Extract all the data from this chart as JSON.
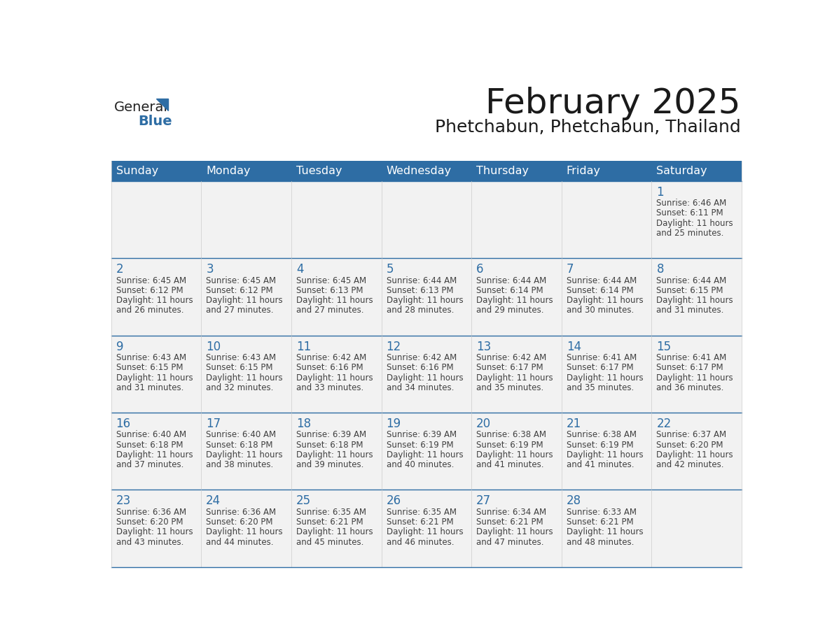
{
  "title": "February 2025",
  "subtitle": "Phetchabun, Phetchabun, Thailand",
  "header_bg": "#2E6DA4",
  "header_text_color": "#FFFFFF",
  "cell_bg_light": "#F2F2F2",
  "day_number_color": "#2E6DA4",
  "info_text_color": "#404040",
  "border_color": "#2E6DA4",
  "days_of_week": [
    "Sunday",
    "Monday",
    "Tuesday",
    "Wednesday",
    "Thursday",
    "Friday",
    "Saturday"
  ],
  "weeks": [
    [
      {
        "day": null,
        "sunrise": null,
        "sunset": null,
        "daylight": null
      },
      {
        "day": null,
        "sunrise": null,
        "sunset": null,
        "daylight": null
      },
      {
        "day": null,
        "sunrise": null,
        "sunset": null,
        "daylight": null
      },
      {
        "day": null,
        "sunrise": null,
        "sunset": null,
        "daylight": null
      },
      {
        "day": null,
        "sunrise": null,
        "sunset": null,
        "daylight": null
      },
      {
        "day": null,
        "sunrise": null,
        "sunset": null,
        "daylight": null
      },
      {
        "day": 1,
        "sunrise": "6:46 AM",
        "sunset": "6:11 PM",
        "daylight": "11 hours and 25 minutes."
      }
    ],
    [
      {
        "day": 2,
        "sunrise": "6:45 AM",
        "sunset": "6:12 PM",
        "daylight": "11 hours and 26 minutes."
      },
      {
        "day": 3,
        "sunrise": "6:45 AM",
        "sunset": "6:12 PM",
        "daylight": "11 hours and 27 minutes."
      },
      {
        "day": 4,
        "sunrise": "6:45 AM",
        "sunset": "6:13 PM",
        "daylight": "11 hours and 27 minutes."
      },
      {
        "day": 5,
        "sunrise": "6:44 AM",
        "sunset": "6:13 PM",
        "daylight": "11 hours and 28 minutes."
      },
      {
        "day": 6,
        "sunrise": "6:44 AM",
        "sunset": "6:14 PM",
        "daylight": "11 hours and 29 minutes."
      },
      {
        "day": 7,
        "sunrise": "6:44 AM",
        "sunset": "6:14 PM",
        "daylight": "11 hours and 30 minutes."
      },
      {
        "day": 8,
        "sunrise": "6:44 AM",
        "sunset": "6:15 PM",
        "daylight": "11 hours and 31 minutes."
      }
    ],
    [
      {
        "day": 9,
        "sunrise": "6:43 AM",
        "sunset": "6:15 PM",
        "daylight": "11 hours and 31 minutes."
      },
      {
        "day": 10,
        "sunrise": "6:43 AM",
        "sunset": "6:15 PM",
        "daylight": "11 hours and 32 minutes."
      },
      {
        "day": 11,
        "sunrise": "6:42 AM",
        "sunset": "6:16 PM",
        "daylight": "11 hours and 33 minutes."
      },
      {
        "day": 12,
        "sunrise": "6:42 AM",
        "sunset": "6:16 PM",
        "daylight": "11 hours and 34 minutes."
      },
      {
        "day": 13,
        "sunrise": "6:42 AM",
        "sunset": "6:17 PM",
        "daylight": "11 hours and 35 minutes."
      },
      {
        "day": 14,
        "sunrise": "6:41 AM",
        "sunset": "6:17 PM",
        "daylight": "11 hours and 35 minutes."
      },
      {
        "day": 15,
        "sunrise": "6:41 AM",
        "sunset": "6:17 PM",
        "daylight": "11 hours and 36 minutes."
      }
    ],
    [
      {
        "day": 16,
        "sunrise": "6:40 AM",
        "sunset": "6:18 PM",
        "daylight": "11 hours and 37 minutes."
      },
      {
        "day": 17,
        "sunrise": "6:40 AM",
        "sunset": "6:18 PM",
        "daylight": "11 hours and 38 minutes."
      },
      {
        "day": 18,
        "sunrise": "6:39 AM",
        "sunset": "6:18 PM",
        "daylight": "11 hours and 39 minutes."
      },
      {
        "day": 19,
        "sunrise": "6:39 AM",
        "sunset": "6:19 PM",
        "daylight": "11 hours and 40 minutes."
      },
      {
        "day": 20,
        "sunrise": "6:38 AM",
        "sunset": "6:19 PM",
        "daylight": "11 hours and 41 minutes."
      },
      {
        "day": 21,
        "sunrise": "6:38 AM",
        "sunset": "6:19 PM",
        "daylight": "11 hours and 41 minutes."
      },
      {
        "day": 22,
        "sunrise": "6:37 AM",
        "sunset": "6:20 PM",
        "daylight": "11 hours and 42 minutes."
      }
    ],
    [
      {
        "day": 23,
        "sunrise": "6:36 AM",
        "sunset": "6:20 PM",
        "daylight": "11 hours and 43 minutes."
      },
      {
        "day": 24,
        "sunrise": "6:36 AM",
        "sunset": "6:20 PM",
        "daylight": "11 hours and 44 minutes."
      },
      {
        "day": 25,
        "sunrise": "6:35 AM",
        "sunset": "6:21 PM",
        "daylight": "11 hours and 45 minutes."
      },
      {
        "day": 26,
        "sunrise": "6:35 AM",
        "sunset": "6:21 PM",
        "daylight": "11 hours and 46 minutes."
      },
      {
        "day": 27,
        "sunrise": "6:34 AM",
        "sunset": "6:21 PM",
        "daylight": "11 hours and 47 minutes."
      },
      {
        "day": 28,
        "sunrise": "6:33 AM",
        "sunset": "6:21 PM",
        "daylight": "11 hours and 48 minutes."
      },
      {
        "day": null,
        "sunrise": null,
        "sunset": null,
        "daylight": null
      }
    ]
  ],
  "logo_general_color": "#222222",
  "logo_blue_color": "#2E6DA4",
  "logo_triangle_color": "#2E6DA4"
}
